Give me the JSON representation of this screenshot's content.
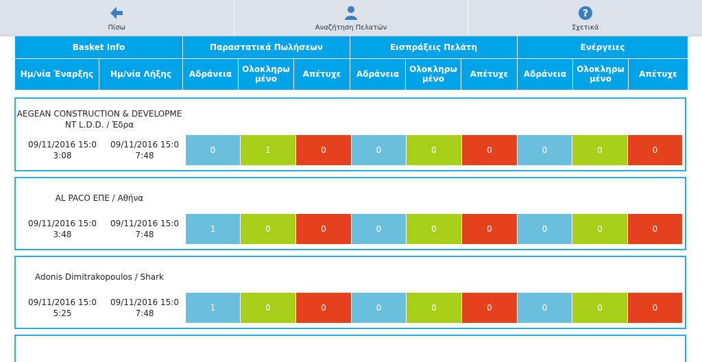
{
  "toolbar": {
    "back_label": "Πίσω",
    "search_label": "Αναζήτηση Πελατών",
    "about_label": "Σχετικά"
  },
  "header": {
    "groups": [
      "Basket Info",
      "Παραστατικά Πωλήσεων",
      "Εισπράξεις Πελάτη",
      "Ενέργειες"
    ],
    "basket": [
      "Ημ/νία Έναρξης",
      "Ημ/νία Λήξης"
    ],
    "status": [
      "Αδράνεια",
      "Ολοκληρωμένο",
      "Απέτυχε"
    ]
  },
  "rows": [
    {
      "title_line1": "AEGEAN CONSTRUCTION & DEVELOPME",
      "title_line2": "NT L.D.D. / Έδρα",
      "start_line1": "09/11/2016 15:0",
      "start_line2": "3:08",
      "end_line1": "09/11/2016 15:0",
      "end_line2": "7:48",
      "values": [
        "0",
        "1",
        "0",
        "0",
        "0",
        "0",
        "0",
        "0",
        "0"
      ]
    },
    {
      "title_line1": "AL PACO ΕΠΕ / Αθήνα",
      "start_line1": "09/11/2016 15:0",
      "start_line2": "3:48",
      "end_line1": "09/11/2016 15:0",
      "end_line2": "7:48",
      "values": [
        "1",
        "0",
        "0",
        "0",
        "0",
        "0",
        "0",
        "0",
        "0"
      ]
    },
    {
      "title_line1": "Adonis Dimitrakopoulos / Shark",
      "start_line1": "09/11/2016 15:0",
      "start_line2": "5:25",
      "end_line1": "09/11/2016 15:0",
      "end_line2": "7:48",
      "values": [
        "1",
        "0",
        "0",
        "0",
        "0",
        "0",
        "0",
        "0",
        "0"
      ]
    }
  ],
  "colors": {
    "header": "#00a2e8",
    "idle": "#6abfdf",
    "done": "#a8cf17",
    "failed": "#e4421c"
  }
}
